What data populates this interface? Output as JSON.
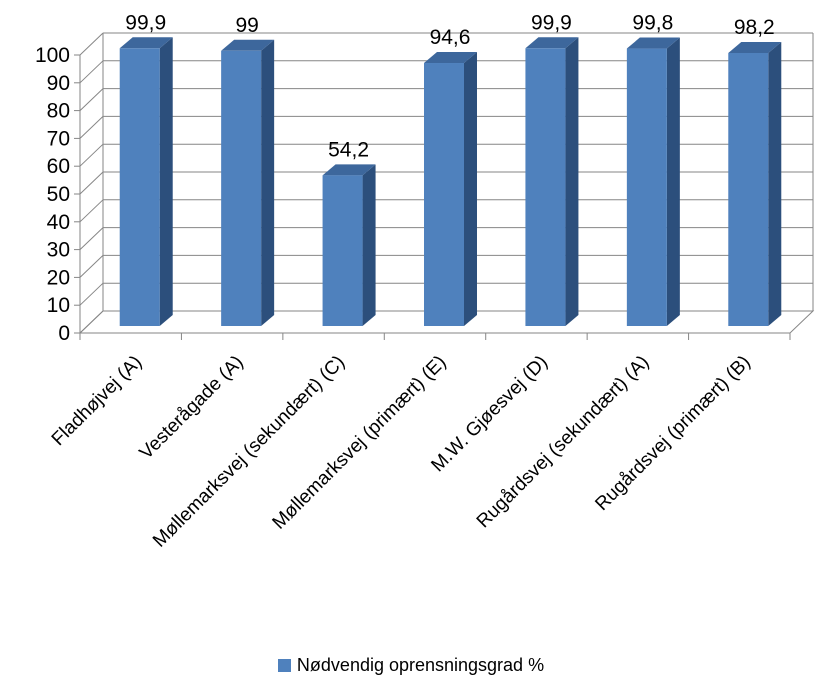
{
  "chart_data": {
    "type": "bar",
    "categories": [
      "Fladhøjvej (A)",
      "Vesterågade (A)",
      "Møllemarksvej (sekundært) (C)",
      "Møllemarksvej (primært) (E)",
      "M.W. Gjøesvej (D)",
      "Rugårdsvej (sekundært) (A)",
      "Rugårdsvej (primært) (B)"
    ],
    "series": [
      {
        "name": "Nødvendig oprensningsgrad %",
        "values": [
          99.9,
          99,
          54.2,
          94.6,
          99.9,
          99.8,
          98.2
        ],
        "labels": [
          "99,9",
          "99",
          "54,2",
          "94,6",
          "99,9",
          "99,8",
          "98,2"
        ]
      }
    ],
    "ylim": [
      0,
      100
    ],
    "yticks": [
      0,
      10,
      20,
      30,
      40,
      50,
      60,
      70,
      80,
      90,
      100
    ],
    "grid": true,
    "legend_position": "bottom",
    "colors": {
      "bar_front": "#4f81bd",
      "bar_side": "#2c4f7c",
      "bar_top": "#3d679c",
      "grid": "#868686",
      "floor": "#ffffff"
    }
  }
}
